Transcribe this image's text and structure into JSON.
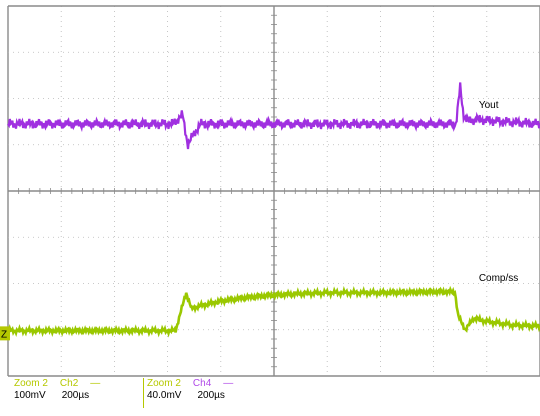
{
  "chart_data": {
    "type": "line",
    "title": "",
    "grid": true,
    "divisions": {
      "x": 10,
      "y": 8
    },
    "series": [
      {
        "name": "Vout",
        "color": "#a030e0",
        "x": [
          0,
          3.1,
          3.28,
          3.38,
          3.5,
          3.62,
          3.8,
          4.5,
          5.5,
          6.5,
          7.5,
          8.42,
          8.5,
          8.56,
          8.66,
          8.8,
          9.3,
          10
        ],
        "y": [
          2.55,
          2.55,
          2.35,
          3.0,
          2.75,
          2.55,
          2.55,
          2.55,
          2.55,
          2.55,
          2.55,
          2.55,
          1.75,
          2.35,
          2.5,
          2.45,
          2.5,
          2.55
        ]
      },
      {
        "name": "Comp/ss",
        "color": "#9ac800",
        "x": [
          0,
          3.15,
          3.25,
          3.35,
          3.45,
          3.55,
          4.0,
          4.5,
          5.0,
          5.5,
          6.0,
          7.0,
          8.0,
          8.4,
          8.46,
          8.6,
          8.75,
          9.0,
          9.5,
          10
        ],
        "y": [
          7.02,
          7.02,
          6.6,
          6.2,
          6.55,
          6.5,
          6.38,
          6.3,
          6.25,
          6.22,
          6.2,
          6.2,
          6.18,
          6.18,
          6.7,
          7.0,
          6.75,
          6.82,
          6.9,
          6.92
        ]
      }
    ],
    "annotations": [
      {
        "text": "Yout",
        "x": 8.85,
        "y": 2.2
      },
      {
        "text": "Comp/ss",
        "x": 8.85,
        "y": 5.95
      }
    ],
    "marker": {
      "text": "Z",
      "x": 0.0,
      "y": 7.1
    }
  },
  "readout": [
    {
      "zoom": "Zoom 2",
      "channel": "Ch2",
      "scale": "100mV",
      "time": "200µs"
    },
    {
      "zoom": "Zoom 2",
      "channel": "Ch4",
      "scale": "40.0mV",
      "time": "200µs"
    }
  ]
}
